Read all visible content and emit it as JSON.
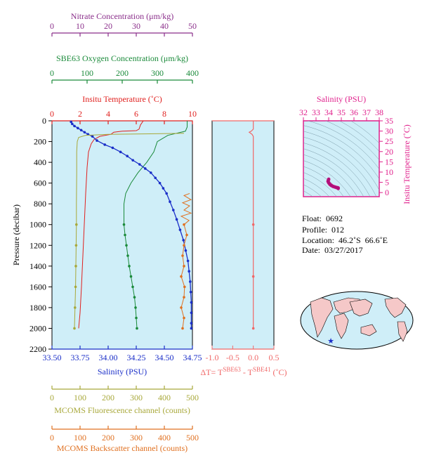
{
  "chart_data": [
    {
      "type": "line",
      "name": "profile-panel",
      "ylabel": "Pressure (decibar)",
      "y_ticks": [
        "0",
        "200",
        "400",
        "600",
        "800",
        "1000",
        "1200",
        "1400",
        "1600",
        "1800",
        "2000",
        "2200"
      ],
      "ylim": [
        0,
        2200
      ],
      "y_inverted": true,
      "background": "#cfeef8",
      "axes": [
        {
          "key": "nitrate",
          "title": "Nitrate Concentration (μm/kg)",
          "color": "#8a2e8a",
          "range": [
            0,
            50
          ],
          "ticks": [
            "0",
            "10",
            "20",
            "30",
            "40",
            "50"
          ]
        },
        {
          "key": "oxygen",
          "title": "SBE63 Oxygen Concentration (μm/kg)",
          "color": "#1a8a3a",
          "range": [
            0,
            400
          ],
          "ticks": [
            "0",
            "100",
            "200",
            "300",
            "400"
          ]
        },
        {
          "key": "temperature",
          "title": "Insitu Temperature (˚C)",
          "color": "#e0201e",
          "range": [
            0,
            10
          ],
          "ticks": [
            "0",
            "2",
            "4",
            "6",
            "8",
            "10"
          ]
        },
        {
          "key": "salinity",
          "title": "Salinity (PSU)",
          "color": "#1a2ec8",
          "range": [
            33.5,
            34.75
          ],
          "ticks": [
            "33.50",
            "33.75",
            "34.00",
            "34.25",
            "34.50",
            "34.75"
          ]
        },
        {
          "key": "fluorescence",
          "title": "MCOMS Fluorescence channel (counts)",
          "color": "#a8a83a",
          "range": [
            0,
            500
          ],
          "ticks": [
            "0",
            "100",
            "200",
            "300",
            "400",
            "500"
          ]
        },
        {
          "key": "backscatter",
          "title": "MCOMS Backscatter channel (counts)",
          "color": "#e07020",
          "range": [
            0,
            500
          ],
          "ticks": [
            "0",
            "100",
            "200",
            "300",
            "400",
            "500"
          ]
        }
      ],
      "series": [
        {
          "axis": "temperature",
          "color": "#e0201e",
          "points": [
            [
              6.5,
              0
            ],
            [
              6.3,
              40
            ],
            [
              6.2,
              80
            ],
            [
              6.0,
              95
            ],
            [
              5.0,
              100
            ],
            [
              4.4,
              110
            ],
            [
              4.2,
              130
            ],
            [
              3.4,
              150
            ],
            [
              3.0,
              180
            ],
            [
              2.8,
              220
            ],
            [
              2.6,
              300
            ],
            [
              2.5,
              450
            ],
            [
              2.4,
              700
            ],
            [
              2.3,
              1000
            ],
            [
              2.2,
              1300
            ],
            [
              2.1,
              1600
            ],
            [
              2.0,
              1850
            ],
            [
              1.9,
              2000
            ]
          ]
        },
        {
          "axis": "oxygen",
          "color": "#1a8a3a",
          "points": [
            [
              385,
              0
            ],
            [
              385,
              60
            ],
            [
              380,
              100
            ],
            [
              330,
              140
            ],
            [
              300,
              200
            ],
            [
              290,
              300
            ],
            [
              270,
              400
            ],
            [
              245,
              500
            ],
            [
              225,
              600
            ],
            [
              210,
              700
            ],
            [
              205,
              800
            ],
            [
              205,
              900
            ],
            [
              205,
              1000
            ],
            [
              208,
              1100
            ],
            [
              212,
              1200
            ],
            [
              216,
              1300
            ],
            [
              220,
              1400
            ],
            [
              225,
              1500
            ],
            [
              230,
              1600
            ],
            [
              235,
              1700
            ],
            [
              238,
              1800
            ],
            [
              240,
              1900
            ],
            [
              242,
              2000
            ]
          ]
        },
        {
          "axis": "salinity",
          "color": "#1a2ec8",
          "points": [
            [
              33.67,
              10
            ],
            [
              33.68,
              30
            ],
            [
              33.7,
              50
            ],
            [
              33.73,
              70
            ],
            [
              33.76,
              90
            ],
            [
              33.79,
              110
            ],
            [
              33.82,
              130
            ],
            [
              33.86,
              150
            ],
            [
              33.9,
              190
            ],
            [
              33.97,
              230
            ],
            [
              34.04,
              260
            ],
            [
              34.11,
              300
            ],
            [
              34.17,
              340
            ],
            [
              34.22,
              380
            ],
            [
              34.28,
              420
            ],
            [
              34.33,
              460
            ],
            [
              34.38,
              500
            ],
            [
              34.42,
              550
            ],
            [
              34.46,
              600
            ],
            [
              34.49,
              650
            ],
            [
              34.52,
              700
            ],
            [
              34.55,
              780
            ],
            [
              34.58,
              860
            ],
            [
              34.61,
              950
            ],
            [
              34.64,
              1050
            ],
            [
              34.67,
              1150
            ],
            [
              34.69,
              1250
            ],
            [
              34.71,
              1350
            ],
            [
              34.72,
              1450
            ],
            [
              34.73,
              1550
            ],
            [
              34.735,
              1650
            ],
            [
              34.74,
              1750
            ],
            [
              34.74,
              1850
            ],
            [
              34.74,
              1950
            ],
            [
              34.74,
              2000
            ]
          ]
        },
        {
          "axis": "fluorescence",
          "color": "#a8a83a",
          "points": [
            [
              470,
              120
            ],
            [
              350,
              125
            ],
            [
              200,
              130
            ],
            [
              120,
              140
            ],
            [
              95,
              160
            ],
            [
              90,
              200
            ],
            [
              88,
              300
            ],
            [
              88,
              500
            ],
            [
              87,
              800
            ],
            [
              87,
              1000
            ],
            [
              86,
              1200
            ],
            [
              85,
              1400
            ],
            [
              84,
              1600
            ],
            [
              82,
              1800
            ],
            [
              80,
              2000
            ]
          ]
        },
        {
          "axis": "backscatter",
          "color": "#e07020",
          "points": [
            [
              490,
              700
            ],
            [
              470,
              720
            ],
            [
              495,
              760
            ],
            [
              465,
              790
            ],
            [
              490,
              820
            ],
            [
              470,
              860
            ],
            [
              495,
              890
            ],
            [
              460,
              920
            ],
            [
              488,
              960
            ],
            [
              470,
              1000
            ],
            [
              480,
              1100
            ],
            [
              470,
              1200
            ],
            [
              465,
              1300
            ],
            [
              470,
              1400
            ],
            [
              460,
              1500
            ],
            [
              472,
              1600
            ],
            [
              470,
              1700
            ],
            [
              460,
              1800
            ],
            [
              470,
              1900
            ],
            [
              465,
              2000
            ]
          ]
        }
      ]
    },
    {
      "type": "line",
      "name": "temperature-difference-panel",
      "xlabel": "ΔT= T",
      "xlabel_sub1": "SBE63",
      "xlabel_mid": " - T",
      "xlabel_sub2": "SBE41",
      "xlabel_unit": " (˚C)",
      "xlim": [
        -1.0,
        0.5
      ],
      "x_ticks": [
        "-1.0",
        "-0.5",
        "0.0",
        "0.5"
      ],
      "ylim": [
        0,
        2200
      ],
      "color": "#f06868",
      "points": [
        [
          0.0,
          0
        ],
        [
          0.0,
          80
        ],
        [
          -0.05,
          100
        ],
        [
          -0.1,
          110
        ],
        [
          -0.03,
          130
        ],
        [
          0.0,
          150
        ],
        [
          0.0,
          300
        ],
        [
          0.0,
          1000
        ],
        [
          0.0,
          1500
        ],
        [
          0.0,
          2000
        ]
      ]
    },
    {
      "type": "scatter",
      "name": "ts-diagram",
      "title": "Salinity (PSU)",
      "ylabel": "Insitu Temperature (˚C)",
      "xlim": [
        32,
        38
      ],
      "ylim": [
        -2,
        35
      ],
      "x_ticks": [
        "32",
        "33",
        "34",
        "35",
        "36",
        "37",
        "38"
      ],
      "y_ticks": [
        "0",
        "5",
        "10",
        "15",
        "20",
        "25",
        "30",
        "35"
      ],
      "color": "#e0208c",
      "points": [
        [
          34.0,
          6.5
        ],
        [
          33.95,
          5.5
        ],
        [
          34.0,
          4.8
        ],
        [
          34.1,
          4.0
        ],
        [
          34.2,
          3.5
        ],
        [
          34.35,
          3.0
        ],
        [
          34.5,
          2.7
        ],
        [
          34.6,
          2.5
        ],
        [
          34.7,
          2.4
        ],
        [
          34.75,
          2.3
        ],
        [
          34.75,
          2.0
        ]
      ]
    }
  ],
  "metadata": {
    "float_label": "Float:",
    "float_value": "0692",
    "profile_label": "Profile:",
    "profile_value": "012",
    "location_label": "Location:",
    "location_value": "46.2˚S  66.6˚E",
    "date_label": "Date:",
    "date_value": "03/27/2017"
  },
  "map": {
    "background": "#cfeef8",
    "land": "#f5c8c8",
    "marker": "#1a2ec8"
  }
}
